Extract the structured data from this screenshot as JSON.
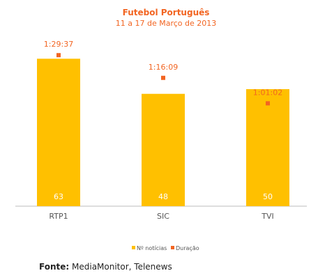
{
  "chart_data": {
    "type": "bar",
    "title": "Futebol Português",
    "subtitle": "11 a 17 de Março de 2013",
    "categories": [
      "RTP1",
      "SIC",
      "TVI"
    ],
    "series": [
      {
        "name": "Nº notícias",
        "type": "bar",
        "values": [
          63,
          48,
          50
        ],
        "labels": [
          "63",
          "48",
          "50"
        ]
      },
      {
        "name": "Duração",
        "type": "scatter",
        "values": [
          5377,
          4569,
          3662
        ],
        "labels": [
          "1:29:37",
          "1:16:09",
          "1:01:02"
        ]
      }
    ],
    "bar_ylim": [
      0,
      75
    ],
    "duration_ylim": [
      0,
      6250
    ],
    "legend": "bottom-center",
    "grid": false
  },
  "source": {
    "label": "Fonte:",
    "text": "MediaMonitor, Telenews"
  },
  "colors": {
    "bar": "#FFC000",
    "marker": "#F26522",
    "title": "#F26522",
    "axis": "#BBBBBB"
  }
}
